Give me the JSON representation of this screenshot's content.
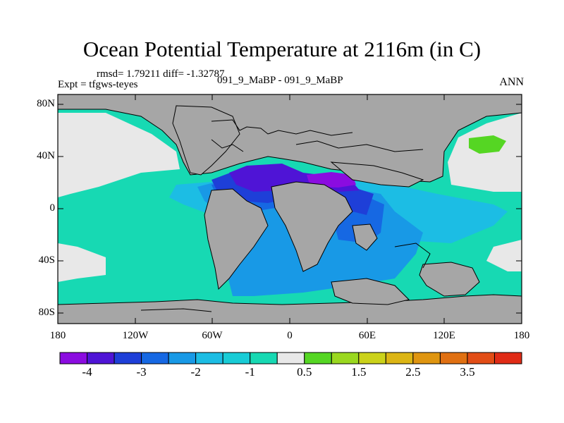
{
  "title": "Ocean Potential Temperature at 2116m (in C)",
  "stats_text": "rmsd= 1.79211 diff= -1.32787",
  "experiment_text": "Expt = tfgws-teyes",
  "cases_text": "091_9_MaBP - 091_9_MaBP",
  "season": "ANN",
  "lat_ticks": [
    "80N",
    "40N",
    "0",
    "40S",
    "80S"
  ],
  "lon_ticks": [
    "180",
    "120W",
    "60W",
    "0",
    "60E",
    "120E",
    "180"
  ],
  "colorbar": {
    "colors": [
      "#8b0ce0",
      "#4f14d6",
      "#1e3fd8",
      "#1668e3",
      "#1899e6",
      "#1cbde4",
      "#18ccd6",
      "#17d9b3",
      "#e8e8e8",
      "#55d623",
      "#9ad81f",
      "#cbd21a",
      "#dcb514",
      "#df9510",
      "#e07012",
      "#e24d16",
      "#e02b16"
    ],
    "labels": [
      "-4",
      "-3",
      "-2",
      "-1",
      "0.5",
      "1.5",
      "2.5",
      "3.5"
    ]
  },
  "colors": {
    "land": "#a6a6a6",
    "no_data": "#e8e8e8",
    "ocean_main": "#17d9b3",
    "ocean_cyan": "#1cbde4",
    "ocean_blue": "#1899e6",
    "ocean_deep": "#1668e3",
    "ocean_indigo": "#1e3fd8",
    "ocean_violet": "#4f14d6",
    "ocean_purple": "#8b0ce0",
    "arctic_green": "#55d623",
    "coast": "#000000"
  }
}
